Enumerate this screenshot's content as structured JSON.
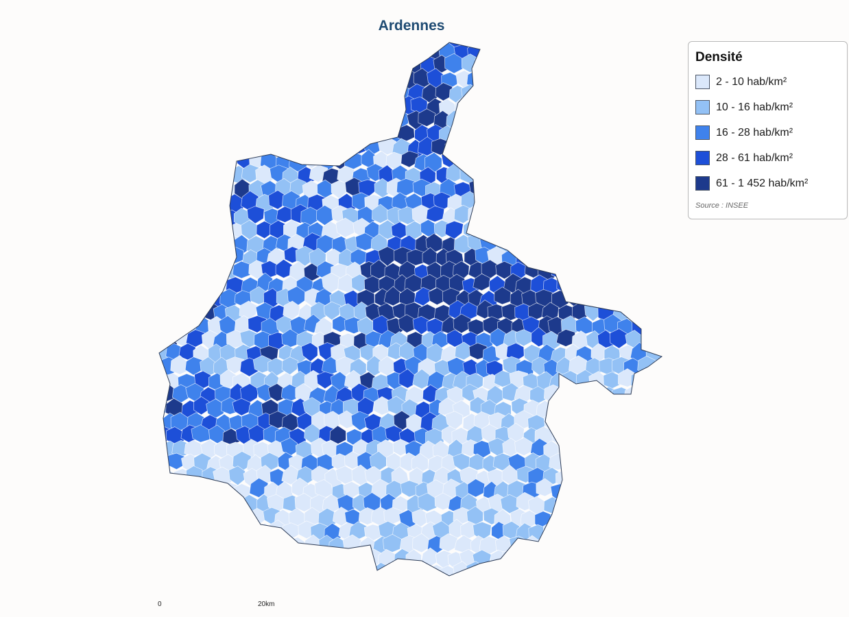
{
  "title": "Ardennes",
  "legend": {
    "title": "Densité",
    "items": [
      {
        "label": "2 - 10 hab/km²",
        "color": "#dbe8fb"
      },
      {
        "label": "10 - 16 hab/km²",
        "color": "#93c1f5"
      },
      {
        "label": "16 - 28 hab/km²",
        "color": "#3f82ec"
      },
      {
        "label": "28 - 61 hab/km²",
        "color": "#1d4fd8"
      },
      {
        "label": "61 - 1 452 hab/km²",
        "color": "#1d3a8c"
      }
    ],
    "source": "Source : INSEE"
  },
  "scale_bar": {
    "start_label": "0",
    "end_label": "20km"
  }
}
